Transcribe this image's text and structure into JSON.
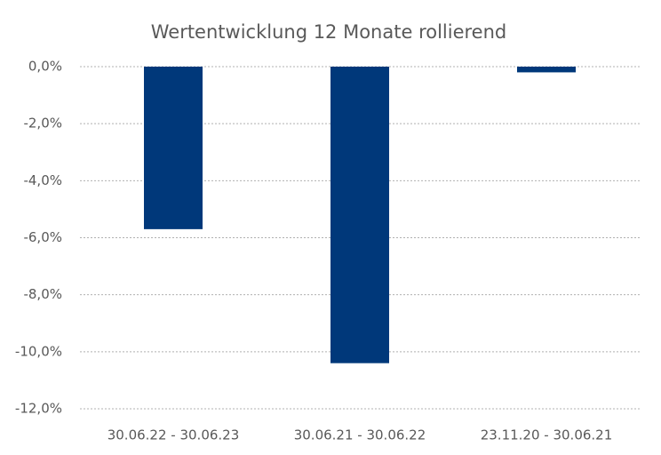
{
  "chart_data": {
    "type": "bar",
    "title": "Wertentwicklung 12 Monate rollierend",
    "categories": [
      "30.06.22 - 30.06.23",
      "30.06.21 - 30.06.22",
      "23.11.20 - 30.06.21"
    ],
    "values": [
      -5.7,
      -10.4,
      -0.2
    ],
    "color": "#00387a",
    "ylim": [
      -12,
      0
    ],
    "yticks": [
      {
        "value": 0,
        "label": "0,0%"
      },
      {
        "value": -2,
        "label": "-2,0%"
      },
      {
        "value": -4,
        "label": "-4,0%"
      },
      {
        "value": -6,
        "label": "-6,0%"
      },
      {
        "value": -8,
        "label": "-8,0%"
      },
      {
        "value": -10,
        "label": "-10,0%"
      },
      {
        "value": -12,
        "label": "-12,0%"
      }
    ],
    "grid": true
  }
}
